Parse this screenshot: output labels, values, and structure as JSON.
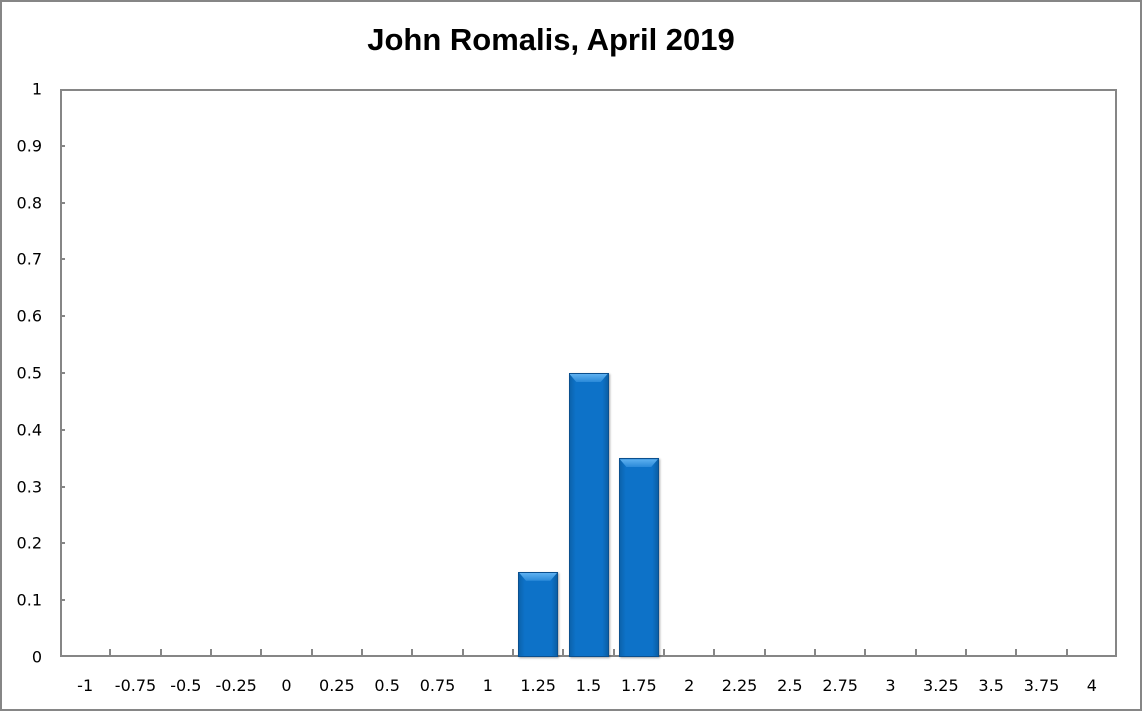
{
  "chart_data": {
    "type": "bar",
    "title": "John Romalis, April 2019",
    "xlabel": "",
    "ylabel": "",
    "categories": [
      "-1",
      "-0.75",
      "-0.5",
      "-0.25",
      "0",
      "0.25",
      "0.5",
      "0.75",
      "1",
      "1.25",
      "1.5",
      "1.75",
      "2",
      "2.25",
      "2.5",
      "2.75",
      "3",
      "3.25",
      "3.5",
      "3.75",
      "4"
    ],
    "values": [
      0,
      0,
      0,
      0,
      0,
      0,
      0,
      0,
      0,
      0.15,
      0.5,
      0.35,
      0,
      0,
      0,
      0,
      0,
      0,
      0,
      0,
      0
    ],
    "ylim": [
      0,
      1
    ],
    "yticks": [
      "0",
      "0.1",
      "0.2",
      "0.3",
      "0.4",
      "0.5",
      "0.6",
      "0.7",
      "0.8",
      "0.9",
      "1"
    ],
    "grid": false,
    "legend": null,
    "bar_color": "#0d72c8"
  }
}
